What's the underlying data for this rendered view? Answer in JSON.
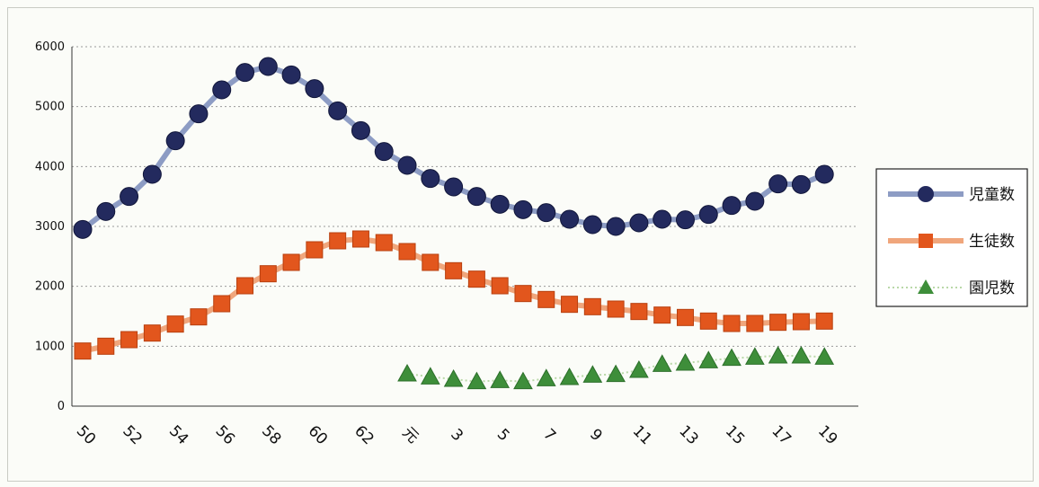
{
  "chart_data": {
    "type": "line",
    "x": [
      "50",
      "51",
      "52",
      "53",
      "54",
      "55",
      "56",
      "57",
      "58",
      "59",
      "60",
      "61",
      "62",
      "63",
      "元",
      "2",
      "3",
      "4",
      "5",
      "6",
      "7",
      "8",
      "9",
      "10",
      "11",
      "12",
      "13",
      "14",
      "15",
      "16",
      "17",
      "18",
      "19",
      "20"
    ],
    "x_tick_labels": [
      "50",
      "52",
      "54",
      "56",
      "58",
      "60",
      "62",
      "元",
      "3",
      "5",
      "7",
      "9",
      "11",
      "13",
      "15",
      "17",
      "19"
    ],
    "ylim": [
      0,
      6000
    ],
    "y_ticks": [
      "0",
      "1000",
      "2000",
      "3000",
      "4000",
      "5000",
      "6000"
    ],
    "grid": true,
    "legend_position": "right",
    "series": [
      {
        "name": "児童数",
        "color": "#232a5e",
        "line_color": "#8d9cc4",
        "marker": "circle",
        "values": [
          2950,
          3250,
          3500,
          3870,
          4430,
          4880,
          5280,
          5570,
          5670,
          5530,
          5300,
          4930,
          4600,
          4250,
          4020,
          3800,
          3660,
          3500,
          3370,
          3280,
          3230,
          3120,
          3030,
          3000,
          3060,
          3120,
          3110,
          3200,
          3350,
          3420,
          3710,
          3700,
          3870,
          null
        ]
      },
      {
        "name": "生徒数",
        "color": "#e2561d",
        "line_color": "#f0a67c",
        "marker": "square",
        "values": [
          920,
          1000,
          1110,
          1220,
          1370,
          1490,
          1710,
          2010,
          2210,
          2400,
          2610,
          2760,
          2790,
          2730,
          2580,
          2400,
          2260,
          2120,
          2010,
          1880,
          1780,
          1700,
          1660,
          1620,
          1580,
          1520,
          1480,
          1420,
          1380,
          1380,
          1400,
          1410,
          1420,
          null
        ]
      },
      {
        "name": "園児数",
        "color": "#3e8e3a",
        "line_color": "#b9d8a8",
        "marker": "triangle",
        "values": [
          null,
          null,
          null,
          null,
          null,
          null,
          null,
          null,
          null,
          null,
          null,
          null,
          null,
          null,
          540,
          490,
          450,
          410,
          430,
          410,
          460,
          480,
          520,
          530,
          600,
          700,
          720,
          760,
          800,
          820,
          840,
          840,
          820,
          null
        ]
      }
    ]
  }
}
